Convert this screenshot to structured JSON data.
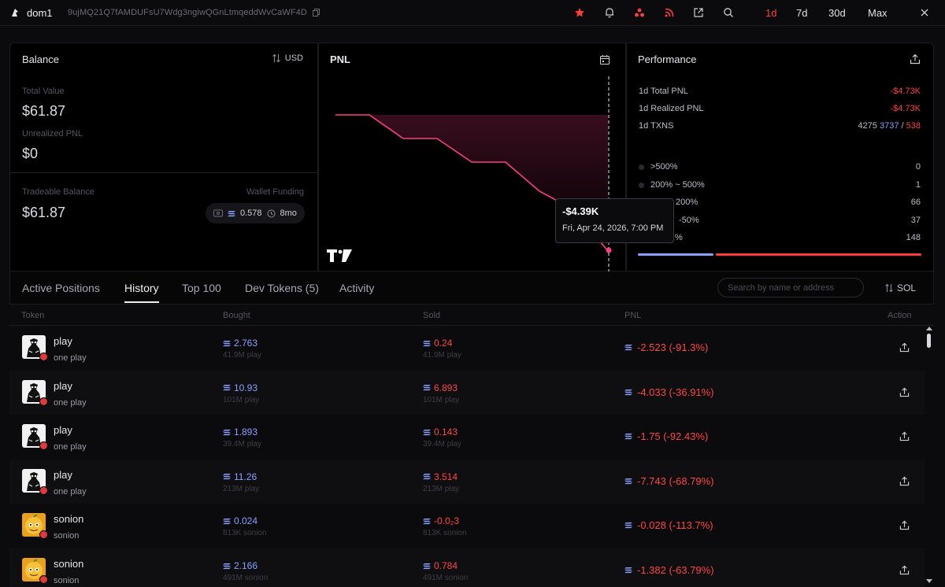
{
  "topbar": {
    "wallet_name": "dom1",
    "wallet_address": "9ujMQ21Q7fAMDUFsU7Wdg3ngiwQGnLtmqeddWvCaWF4D",
    "ranges": [
      "1d",
      "7d",
      "30d",
      "Max"
    ],
    "active_range": "1d"
  },
  "balance": {
    "title": "Balance",
    "currency_toggle": "USD",
    "total_value_label": "Total Value",
    "total_value": "$61.87",
    "unrealized_label": "Unrealized PNL",
    "unrealized_value": "$0",
    "tradeable_label": "Tradeable Balance",
    "tradeable_value": "$61.87",
    "wallet_funding_label": "Wallet Funding",
    "funding_sol": "0.578",
    "funding_age": "8mo"
  },
  "pnl": {
    "title": "PNL",
    "tooltip_value": "-$4.39K",
    "tooltip_date": "Fri, Apr 24, 2026, 7:00 PM",
    "line_color": "#ff3d86"
  },
  "performance": {
    "title": "Performance",
    "total_pnl_label": "1d Total PNL",
    "total_pnl": "-$4.73K",
    "realized_pnl_label": "1d Realized PNL",
    "realized_pnl": "-$4.73K",
    "txns_label": "1d TXNS",
    "txns_total": "4275",
    "txns_buys": "3737",
    "txns_sep": "/",
    "txns_sells": "538",
    "buckets": [
      {
        "label": ">500%",
        "count": "0"
      },
      {
        "label": "200% ~ 500%",
        "count": "1"
      },
      {
        "label": "200%",
        "count": "66"
      },
      {
        "label": "-50%",
        "count": "37"
      },
      {
        "label": "%",
        "count": "148"
      }
    ]
  },
  "tabs": {
    "items": [
      "Active Positions",
      "History",
      "Top 100",
      "Dev Tokens (5)",
      "Activity"
    ],
    "active": "History",
    "search_placeholder": "Search by name or address",
    "unit_toggle": "SOL"
  },
  "table": {
    "headers": {
      "token": "Token",
      "bought": "Bought",
      "sold": "Sold",
      "pnl": "PNL",
      "action": "Action"
    },
    "rows": [
      {
        "name": "play",
        "sub": "one play",
        "bought": "2.763",
        "bought_sub": "41.9M play",
        "sold": "0.24",
        "sold_sub": "41.9M play",
        "pnl": "-2.523 (-91.3%)",
        "img": "play"
      },
      {
        "name": "play",
        "sub": "one play",
        "bought": "10.93",
        "bought_sub": "101M play",
        "sold": "6.893",
        "sold_sub": "101M play",
        "pnl": "-4.033 (-36.91%)",
        "img": "play"
      },
      {
        "name": "play",
        "sub": "one play",
        "bought": "1.893",
        "bought_sub": "39.4M play",
        "sold": "0.143",
        "sold_sub": "39.4M play",
        "pnl": "-1.75 (-92.43%)",
        "img": "play"
      },
      {
        "name": "play",
        "sub": "one play",
        "bought": "11.26",
        "bought_sub": "213M play",
        "sold": "3.514",
        "sold_sub": "213M play",
        "pnl": "-7.743 (-68.79%)",
        "img": "play"
      },
      {
        "name": "sonion",
        "sub": "sonion",
        "bought": "0.024",
        "bought_sub": "813K sonion",
        "sold": "-0.0₂3",
        "sold_sub": "813K sonion",
        "pnl": "-0.028 (-113.7%)",
        "img": "sonion"
      },
      {
        "name": "sonion",
        "sub": "sonion",
        "bought": "2.166",
        "bought_sub": "491M sonion",
        "sold": "0.784",
        "sold_sub": "491M sonion",
        "pnl": "-1.382 (-63.79%)",
        "img": "sonion"
      }
    ]
  },
  "colors": {
    "accent_red": "#ff3b3b",
    "buy_blue": "#8aa0ff",
    "pnl_pink": "#ff3d86"
  }
}
